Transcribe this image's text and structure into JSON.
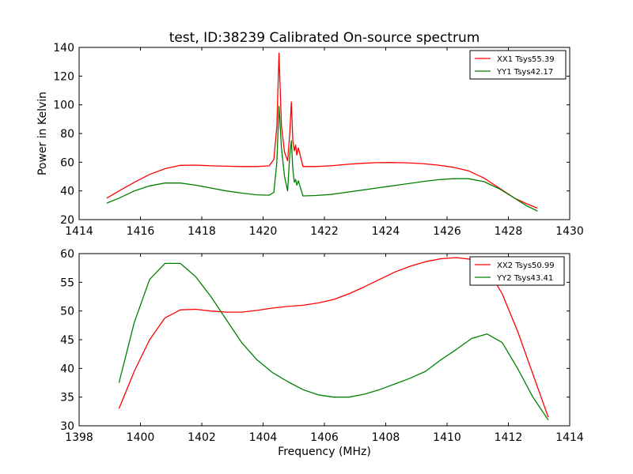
{
  "figure": {
    "title": "test, ID:38239 Calibrated On-source spectrum"
  },
  "chart_data": [
    {
      "type": "line",
      "title": "test, ID:38239 Calibrated On-source spectrum",
      "xlabel": "",
      "ylabel": "Power in Kelvin",
      "xlim": [
        1414,
        1430
      ],
      "ylim": [
        20,
        140
      ],
      "xticks": [
        "1414",
        "1416",
        "1418",
        "1420",
        "1422",
        "1424",
        "1426",
        "1428",
        "1430"
      ],
      "yticks": [
        "20",
        "40",
        "60",
        "80",
        "100",
        "120",
        "140"
      ],
      "legend_position": "top-right",
      "grid": false,
      "series": [
        {
          "name": "XX1 Tsys55.39",
          "color": "#ff0000",
          "x": [
            1414.9,
            1415.3,
            1415.8,
            1416.3,
            1416.8,
            1417.3,
            1417.8,
            1418.3,
            1418.8,
            1419.3,
            1419.8,
            1420.2,
            1420.35,
            1420.45,
            1420.52,
            1420.6,
            1420.7,
            1420.8,
            1420.87,
            1420.92,
            1420.97,
            1421.02,
            1421.06,
            1421.1,
            1421.15,
            1421.3,
            1421.7,
            1422.2,
            1422.7,
            1423.2,
            1423.7,
            1424.2,
            1424.7,
            1425.2,
            1425.7,
            1426.2,
            1426.7,
            1427.2,
            1427.7,
            1428.2,
            1428.6,
            1428.95
          ],
          "values": [
            35,
            40,
            46,
            51.5,
            55.5,
            57.8,
            58,
            57.5,
            57.2,
            57,
            57,
            57.5,
            62,
            85,
            136,
            85,
            67,
            61,
            80,
            102,
            75,
            68,
            72,
            65,
            70,
            57,
            57,
            57.5,
            58.5,
            59.2,
            59.7,
            59.8,
            59.6,
            59,
            58,
            56.5,
            54,
            49,
            42,
            35,
            31,
            28
          ]
        },
        {
          "name": "YY1 Tsys42.17",
          "color": "#008000",
          "x": [
            1414.9,
            1415.3,
            1415.8,
            1416.3,
            1416.8,
            1417.3,
            1417.8,
            1418.3,
            1418.8,
            1419.3,
            1419.8,
            1420.2,
            1420.35,
            1420.45,
            1420.52,
            1420.6,
            1420.7,
            1420.8,
            1420.87,
            1420.92,
            1420.97,
            1421.02,
            1421.06,
            1421.1,
            1421.15,
            1421.3,
            1421.7,
            1422.2,
            1422.7,
            1423.2,
            1423.7,
            1424.2,
            1424.7,
            1425.2,
            1425.7,
            1426.2,
            1426.7,
            1427.2,
            1427.7,
            1428.2,
            1428.6,
            1428.95
          ],
          "values": [
            31.5,
            35,
            40,
            43.5,
            45.5,
            45.5,
            44,
            42,
            40,
            38.5,
            37.3,
            37,
            39,
            60,
            99,
            70,
            50,
            40,
            65,
            75,
            55,
            46,
            48,
            44,
            47,
            36.5,
            36.8,
            37.5,
            39,
            40.5,
            42,
            43.5,
            45,
            46.5,
            47.8,
            48.5,
            48.5,
            46.5,
            41.5,
            35,
            29.5,
            26
          ]
        }
      ]
    },
    {
      "type": "line",
      "title": "",
      "xlabel": "Frequency (MHz)",
      "ylabel": "",
      "xlim": [
        1398,
        1414
      ],
      "ylim": [
        30,
        60
      ],
      "xticks": [
        "1398",
        "1400",
        "1402",
        "1404",
        "1406",
        "1408",
        "1410",
        "1412",
        "1414"
      ],
      "yticks": [
        "30",
        "35",
        "40",
        "45",
        "50",
        "55",
        "60"
      ],
      "legend_position": "top-right",
      "grid": false,
      "series": [
        {
          "name": "XX2 Tsys50.99",
          "color": "#ff0000",
          "x": [
            1399.3,
            1399.8,
            1400.3,
            1400.8,
            1401.3,
            1401.8,
            1402.3,
            1402.8,
            1403.3,
            1403.8,
            1404.3,
            1404.8,
            1405.3,
            1405.8,
            1406.3,
            1406.8,
            1407.3,
            1407.8,
            1408.3,
            1408.8,
            1409.3,
            1409.8,
            1410.3,
            1410.8,
            1411.3,
            1411.8,
            1412.3,
            1412.8,
            1413.3
          ],
          "values": [
            33,
            39.5,
            45,
            48.8,
            50.2,
            50.3,
            50,
            49.8,
            49.8,
            50.1,
            50.5,
            50.8,
            51,
            51.4,
            52,
            53,
            54.2,
            55.5,
            56.8,
            57.8,
            58.6,
            59.1,
            59.3,
            59,
            57.5,
            53,
            46.5,
            39,
            31.5
          ]
        },
        {
          "name": "YY2 Tsys43.41",
          "color": "#008000",
          "x": [
            1399.3,
            1399.8,
            1400.3,
            1400.8,
            1401.3,
            1401.8,
            1402.3,
            1402.8,
            1403.3,
            1403.8,
            1404.3,
            1404.8,
            1405.3,
            1405.8,
            1406.3,
            1406.8,
            1407.3,
            1407.8,
            1408.3,
            1408.8,
            1409.3,
            1409.8,
            1410.3,
            1410.8,
            1411.3,
            1411.8,
            1412.3,
            1412.8,
            1413.3
          ],
          "values": [
            37.5,
            48,
            55.5,
            58.3,
            58.3,
            56,
            52.5,
            48.5,
            44.5,
            41.5,
            39.3,
            37.7,
            36.3,
            35.4,
            35,
            35,
            35.5,
            36.3,
            37.3,
            38.3,
            39.5,
            41.5,
            43.3,
            45.2,
            46,
            44.5,
            40,
            35,
            31
          ]
        }
      ]
    }
  ]
}
